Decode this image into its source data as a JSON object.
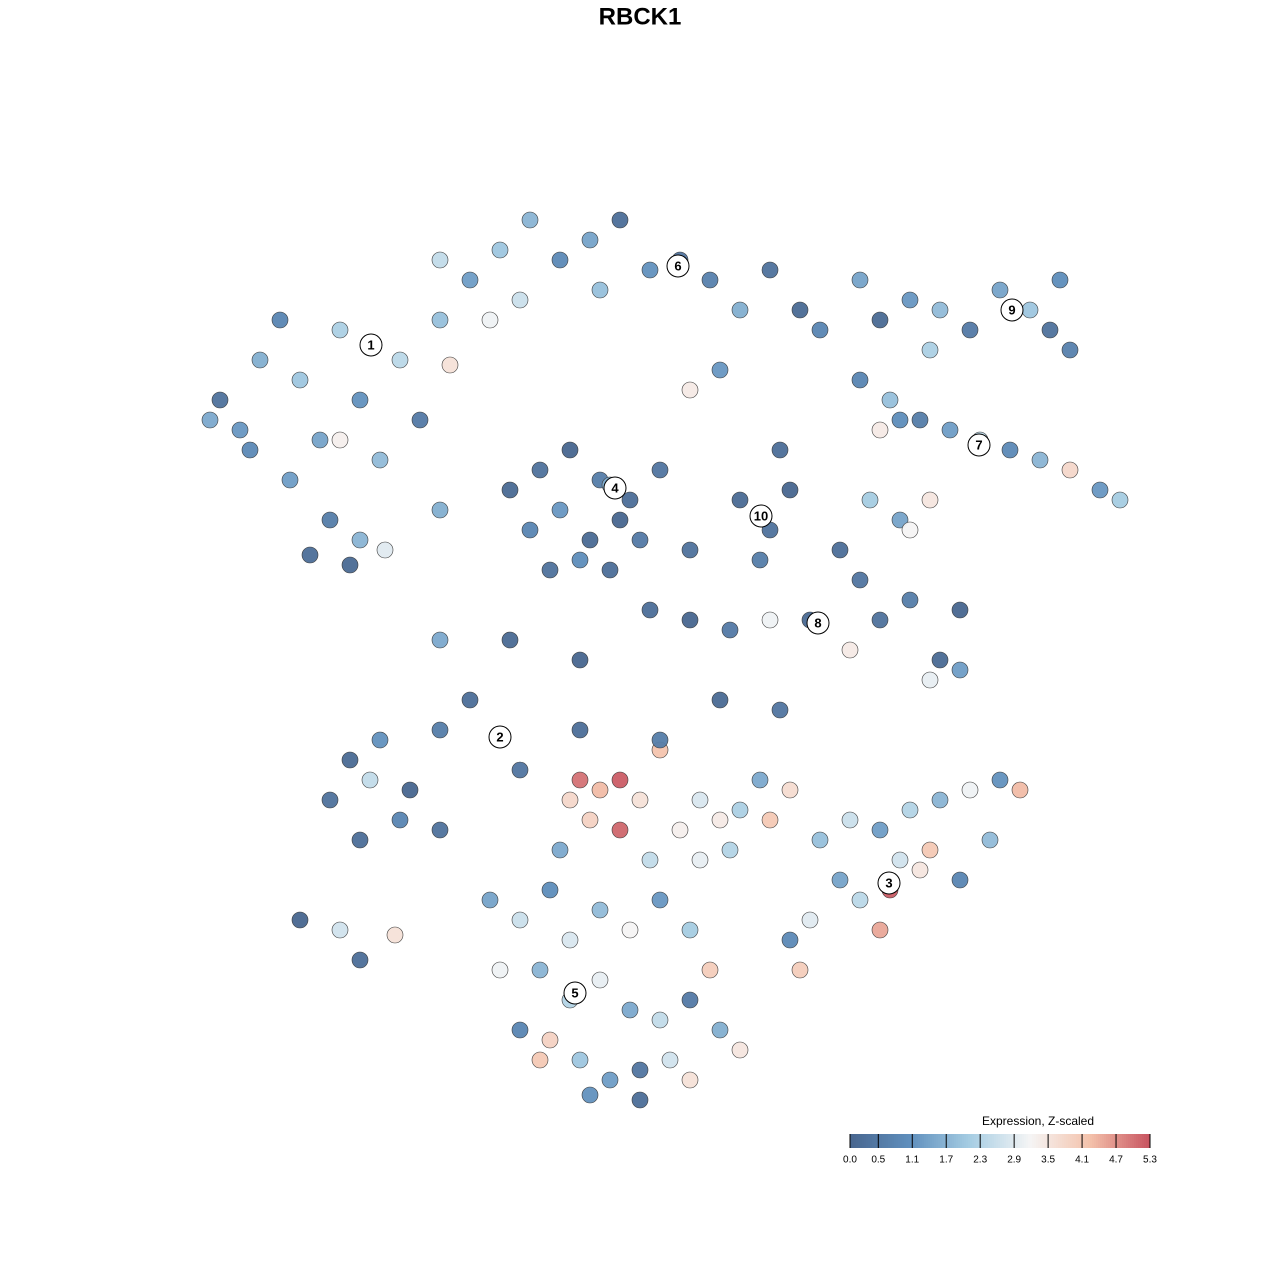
{
  "chart_data": {
    "type": "scatter",
    "title": "RBCK1",
    "xlim": [
      0,
      128
    ],
    "ylim": [
      0,
      128
    ],
    "x": [
      22,
      24,
      26,
      28,
      30,
      32,
      34,
      36,
      38,
      40,
      42,
      44,
      29,
      33,
      36,
      34,
      38.5,
      31,
      35,
      45,
      25,
      21,
      47,
      50,
      53,
      56,
      59,
      62,
      65,
      68,
      71,
      74,
      77,
      80,
      82,
      52,
      49,
      60,
      44,
      69,
      72,
      51,
      54,
      57,
      60,
      63,
      66,
      53,
      56,
      59,
      62,
      55,
      58,
      61,
      64,
      61,
      74,
      77,
      79,
      76,
      78,
      88,
      91,
      94,
      97,
      100,
      103,
      106,
      105,
      107,
      93,
      86,
      89,
      92,
      95,
      98,
      101,
      104,
      107,
      110,
      112,
      88,
      90,
      87,
      90,
      91,
      93,
      65,
      69,
      73,
      77,
      81,
      85,
      88,
      91,
      94,
      96,
      93,
      96,
      84,
      86,
      33,
      35,
      38,
      41,
      44,
      47,
      50,
      52,
      36,
      40,
      37,
      44,
      30,
      34,
      39.5,
      36,
      57,
      58,
      60,
      62,
      59,
      62,
      64,
      66,
      68,
      70,
      72,
      74,
      76,
      77,
      79,
      56,
      65,
      70,
      73,
      66,
      58,
      72,
      78,
      82,
      85,
      88,
      91,
      94,
      97,
      100,
      102,
      99,
      92,
      89,
      86,
      84,
      81,
      88,
      93,
      79,
      80,
      90,
      96,
      49,
      52,
      55,
      57,
      60,
      63,
      66,
      69,
      71,
      54,
      57,
      60,
      63,
      66,
      69,
      72,
      74,
      55,
      58,
      61,
      64,
      67,
      52,
      50,
      59,
      64,
      69,
      54,
      44,
      51,
      58,
      69,
      44,
      86
    ],
    "y": [
      88,
      85,
      92,
      96,
      90,
      84,
      95,
      88,
      82,
      92,
      86,
      96,
      80,
      76,
      74,
      84,
      73,
      72.5,
      71.5,
      91.5,
      83,
      86,
      100,
      103,
      106,
      102,
      104,
      106,
      101,
      102,
      100,
      97,
      101,
      97,
      95,
      98,
      96,
      99,
      102,
      89,
      91,
      79,
      81,
      83,
      80,
      78,
      81,
      75,
      77,
      74,
      76,
      71,
      72,
      71,
      74,
      79.5,
      78,
      75,
      79,
      72,
      83,
      96,
      98,
      97,
      95,
      99,
      97,
      100,
      95,
      93,
      93,
      90,
      88,
      86,
      85,
      84,
      83,
      82,
      81,
      79,
      78,
      85,
      86,
      78,
      76,
      75,
      78,
      67,
      66,
      65,
      66,
      66,
      63,
      66,
      68,
      62,
      61,
      60,
      67,
      73,
      70,
      48,
      52,
      54,
      49,
      55,
      58,
      54,
      51,
      44,
      46,
      50,
      45,
      36,
      35,
      34.5,
      32,
      48,
      50,
      49,
      50,
      46,
      45,
      48,
      53,
      45,
      48,
      46,
      47,
      50,
      46,
      49,
      43,
      42,
      42,
      43,
      54,
      55,
      58,
      57,
      44,
      46,
      45,
      47,
      48,
      49,
      50,
      49,
      44,
      41,
      39,
      38,
      40,
      36,
      35,
      43,
      34,
      31,
      42,
      40,
      38,
      36,
      39,
      34,
      37,
      35,
      38,
      35,
      31,
      31,
      28,
      30,
      27,
      26,
      28,
      25,
      23,
      24,
      22,
      20,
      21,
      22,
      25,
      31,
      18.5,
      18,
      20,
      22,
      64,
      64,
      62,
      73,
      77,
      100
    ],
    "values": [
      0.3,
      1.2,
      1.6,
      0.8,
      2.0,
      1.4,
      2.2,
      1.1,
      1.8,
      2.4,
      0.5,
      1.9,
      1.3,
      0.6,
      1.7,
      3.3,
      2.9,
      0.2,
      0.1,
      3.6,
      0.9,
      1.5,
      1.3,
      2.0,
      1.7,
      0.9,
      1.4,
      0.2,
      1.1,
      0.4,
      0.7,
      1.6,
      0.3,
      0.1,
      0.8,
      2.6,
      3.1,
      1.9,
      2.5,
      3.4,
      1.2,
      0.1,
      0.3,
      0,
      0.6,
      0.2,
      0.4,
      0.8,
      1.2,
      0.1,
      0,
      0.3,
      1.0,
      0.2,
      0.5,
      1.6,
      0.1,
      0.3,
      0,
      0.6,
      0.2,
      0.1,
      1.2,
      1.8,
      0.5,
      1.4,
      2.0,
      1.0,
      0.3,
      0.7,
      2.2,
      0.8,
      1.9,
      0.6,
      1.3,
      2.4,
      0.9,
      1.7,
      3.8,
      1.2,
      2.1,
      3.4,
      1.0,
      2.1,
      1.4,
      3.2,
      3.5,
      0.2,
      0,
      0.5,
      3.1,
      0.1,
      3.4,
      0.3,
      0.6,
      0.1,
      1.3,
      3.0,
      0,
      0.2,
      0.4,
      0.3,
      0.1,
      1.1,
      0,
      0.6,
      0.2,
      0,
      0.4,
      0.2,
      0.8,
      2.5,
      0.3,
      0,
      2.7,
      3.6,
      0.2,
      3.8,
      5.0,
      4.3,
      5.2,
      3.9,
      5.1,
      3.6,
      4.2,
      3.3,
      2.8,
      3.4,
      2.2,
      1.5,
      4.1,
      3.7,
      1.5,
      2.5,
      3.0,
      2.3,
      0.6,
      0.2,
      0.1,
      0.4,
      1.9,
      2.6,
      1.3,
      2.3,
      1.7,
      3.1,
      1.1,
      4.3,
      1.8,
      3.5,
      5.2,
      2.4,
      1.4,
      2.9,
      4.5,
      4.1,
      0.9,
      4.0,
      2.7,
      0.8,
      1.4,
      2.6,
      1.0,
      2.8,
      1.8,
      3.2,
      1.2,
      2.1,
      4.0,
      1.7,
      2.3,
      3.0,
      1.5,
      2.5,
      0.5,
      1.6,
      3.5,
      3.9,
      2.0,
      1.3,
      0.4,
      2.7,
      0.8,
      3.1,
      1.1,
      0.2,
      3.6,
      4.1,
      1.5,
      0.1,
      0,
      0.3,
      1.6,
      1.4
    ],
    "clusters": [
      {
        "label": "1",
        "x": 37.1,
        "y": 93.5
      },
      {
        "label": "6",
        "x": 67.8,
        "y": 101.4
      },
      {
        "label": "4",
        "x": 61.5,
        "y": 79.2
      },
      {
        "label": "10",
        "x": 76.1,
        "y": 76.4
      },
      {
        "label": "9",
        "x": 101.2,
        "y": 97.0
      },
      {
        "label": "7",
        "x": 97.9,
        "y": 83.5
      },
      {
        "label": "8",
        "x": 81.8,
        "y": 65.7
      },
      {
        "label": "2",
        "x": 50.0,
        "y": 54.3
      },
      {
        "label": "3",
        "x": 88.9,
        "y": 39.7
      },
      {
        "label": "5",
        "x": 57.5,
        "y": 28.7
      }
    ],
    "colorbar": {
      "title": "Expression, Z-scaled",
      "lim": [
        0,
        5.3
      ],
      "colors": [
        "#48668f",
        "#5f8fbd",
        "#a6cde3",
        "#f5f5f5",
        "#f4c2ab",
        "#c7525f"
      ],
      "ticks": [
        {
          "value": 0,
          "label": "0.0"
        },
        0.5,
        1.1,
        1.7,
        2.3,
        2.9,
        3.5,
        4.1,
        4.7,
        5.3
      ]
    }
  }
}
